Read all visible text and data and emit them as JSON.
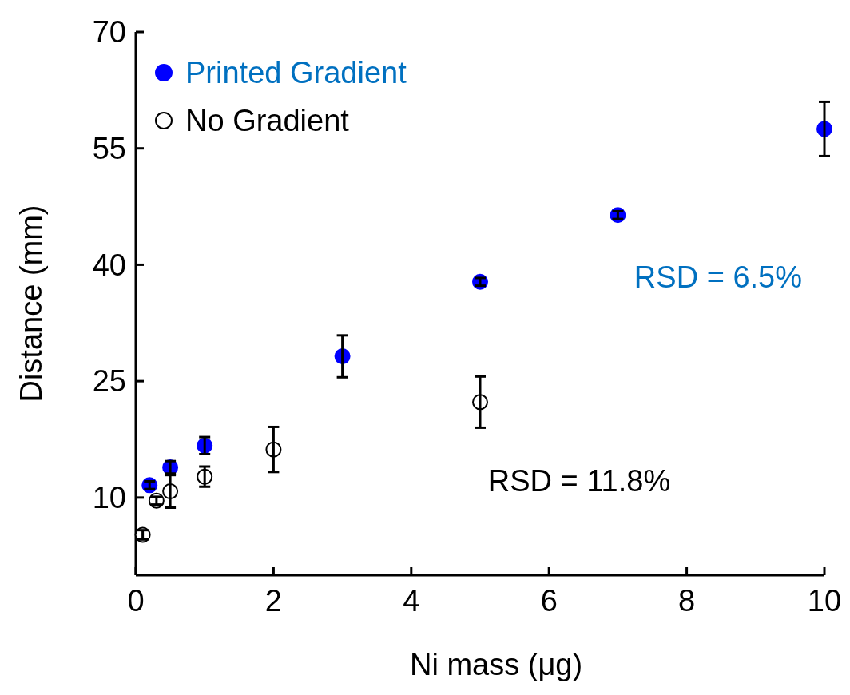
{
  "chart_data": {
    "type": "scatter",
    "xlabel": "Ni mass (μg)",
    "ylabel": "Distance (mm)",
    "xlim": [
      0,
      10
    ],
    "xticks": [
      0,
      2,
      4,
      6,
      8,
      10
    ],
    "ylim": [
      0,
      70
    ],
    "yticks": [
      10,
      25,
      40,
      55,
      70
    ],
    "marker": "circle",
    "legend": "top left",
    "grid": false,
    "series": [
      {
        "name": "Printed Gradient",
        "color": "#0000ff",
        "x": [
          0.2,
          0.5,
          1,
          3,
          5,
          7,
          10
        ],
        "values": [
          11.6,
          13.9,
          16.7,
          28.2,
          37.8,
          46.4,
          57.5
        ],
        "errors": [
          0.5,
          0.8,
          1.1,
          2.7,
          0.5,
          0.5,
          3.5
        ]
      },
      {
        "name": "No Gradient",
        "color": "#ffffff",
        "x": [
          0.1,
          0.3,
          0.5,
          1,
          2,
          5
        ],
        "values": [
          5.2,
          9.6,
          10.8,
          12.7,
          16.2,
          22.3
        ],
        "errors": [
          0.6,
          0.5,
          2.1,
          1.3,
          2.9,
          3.3
        ]
      }
    ],
    "annotations": [
      "RSD = 6.5%",
      "RSD = 11.8%"
    ]
  }
}
